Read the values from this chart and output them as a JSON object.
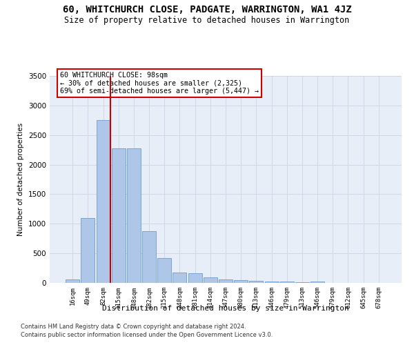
{
  "title": "60, WHITCHURCH CLOSE, PADGATE, WARRINGTON, WA1 4JZ",
  "subtitle": "Size of property relative to detached houses in Warrington",
  "xlabel": "Distribution of detached houses by size in Warrington",
  "ylabel": "Number of detached properties",
  "bar_labels": [
    "16sqm",
    "49sqm",
    "82sqm",
    "115sqm",
    "148sqm",
    "182sqm",
    "215sqm",
    "248sqm",
    "281sqm",
    "314sqm",
    "347sqm",
    "380sqm",
    "413sqm",
    "446sqm",
    "479sqm",
    "513sqm",
    "546sqm",
    "579sqm",
    "612sqm",
    "645sqm",
    "678sqm"
  ],
  "bar_values": [
    55,
    1100,
    2750,
    2270,
    2270,
    870,
    415,
    170,
    160,
    90,
    60,
    50,
    40,
    28,
    22,
    12,
    22,
    5,
    2,
    2,
    2
  ],
  "bar_color": "#aec6e8",
  "bar_edge_color": "#5a8fc2",
  "vline_x_idx": 2,
  "vline_color": "#cc0000",
  "annotation_text": "60 WHITCHURCH CLOSE: 98sqm\n← 30% of detached houses are smaller (2,325)\n69% of semi-detached houses are larger (5,447) →",
  "annotation_box_color": "#ffffff",
  "annotation_box_edge": "#cc0000",
  "ylim": [
    0,
    3500
  ],
  "yticks": [
    0,
    500,
    1000,
    1500,
    2000,
    2500,
    3000,
    3500
  ],
  "grid_color": "#d0d8e8",
  "bg_color": "#e8eef8",
  "footer1": "Contains HM Land Registry data © Crown copyright and database right 2024.",
  "footer2": "Contains public sector information licensed under the Open Government Licence v3.0."
}
